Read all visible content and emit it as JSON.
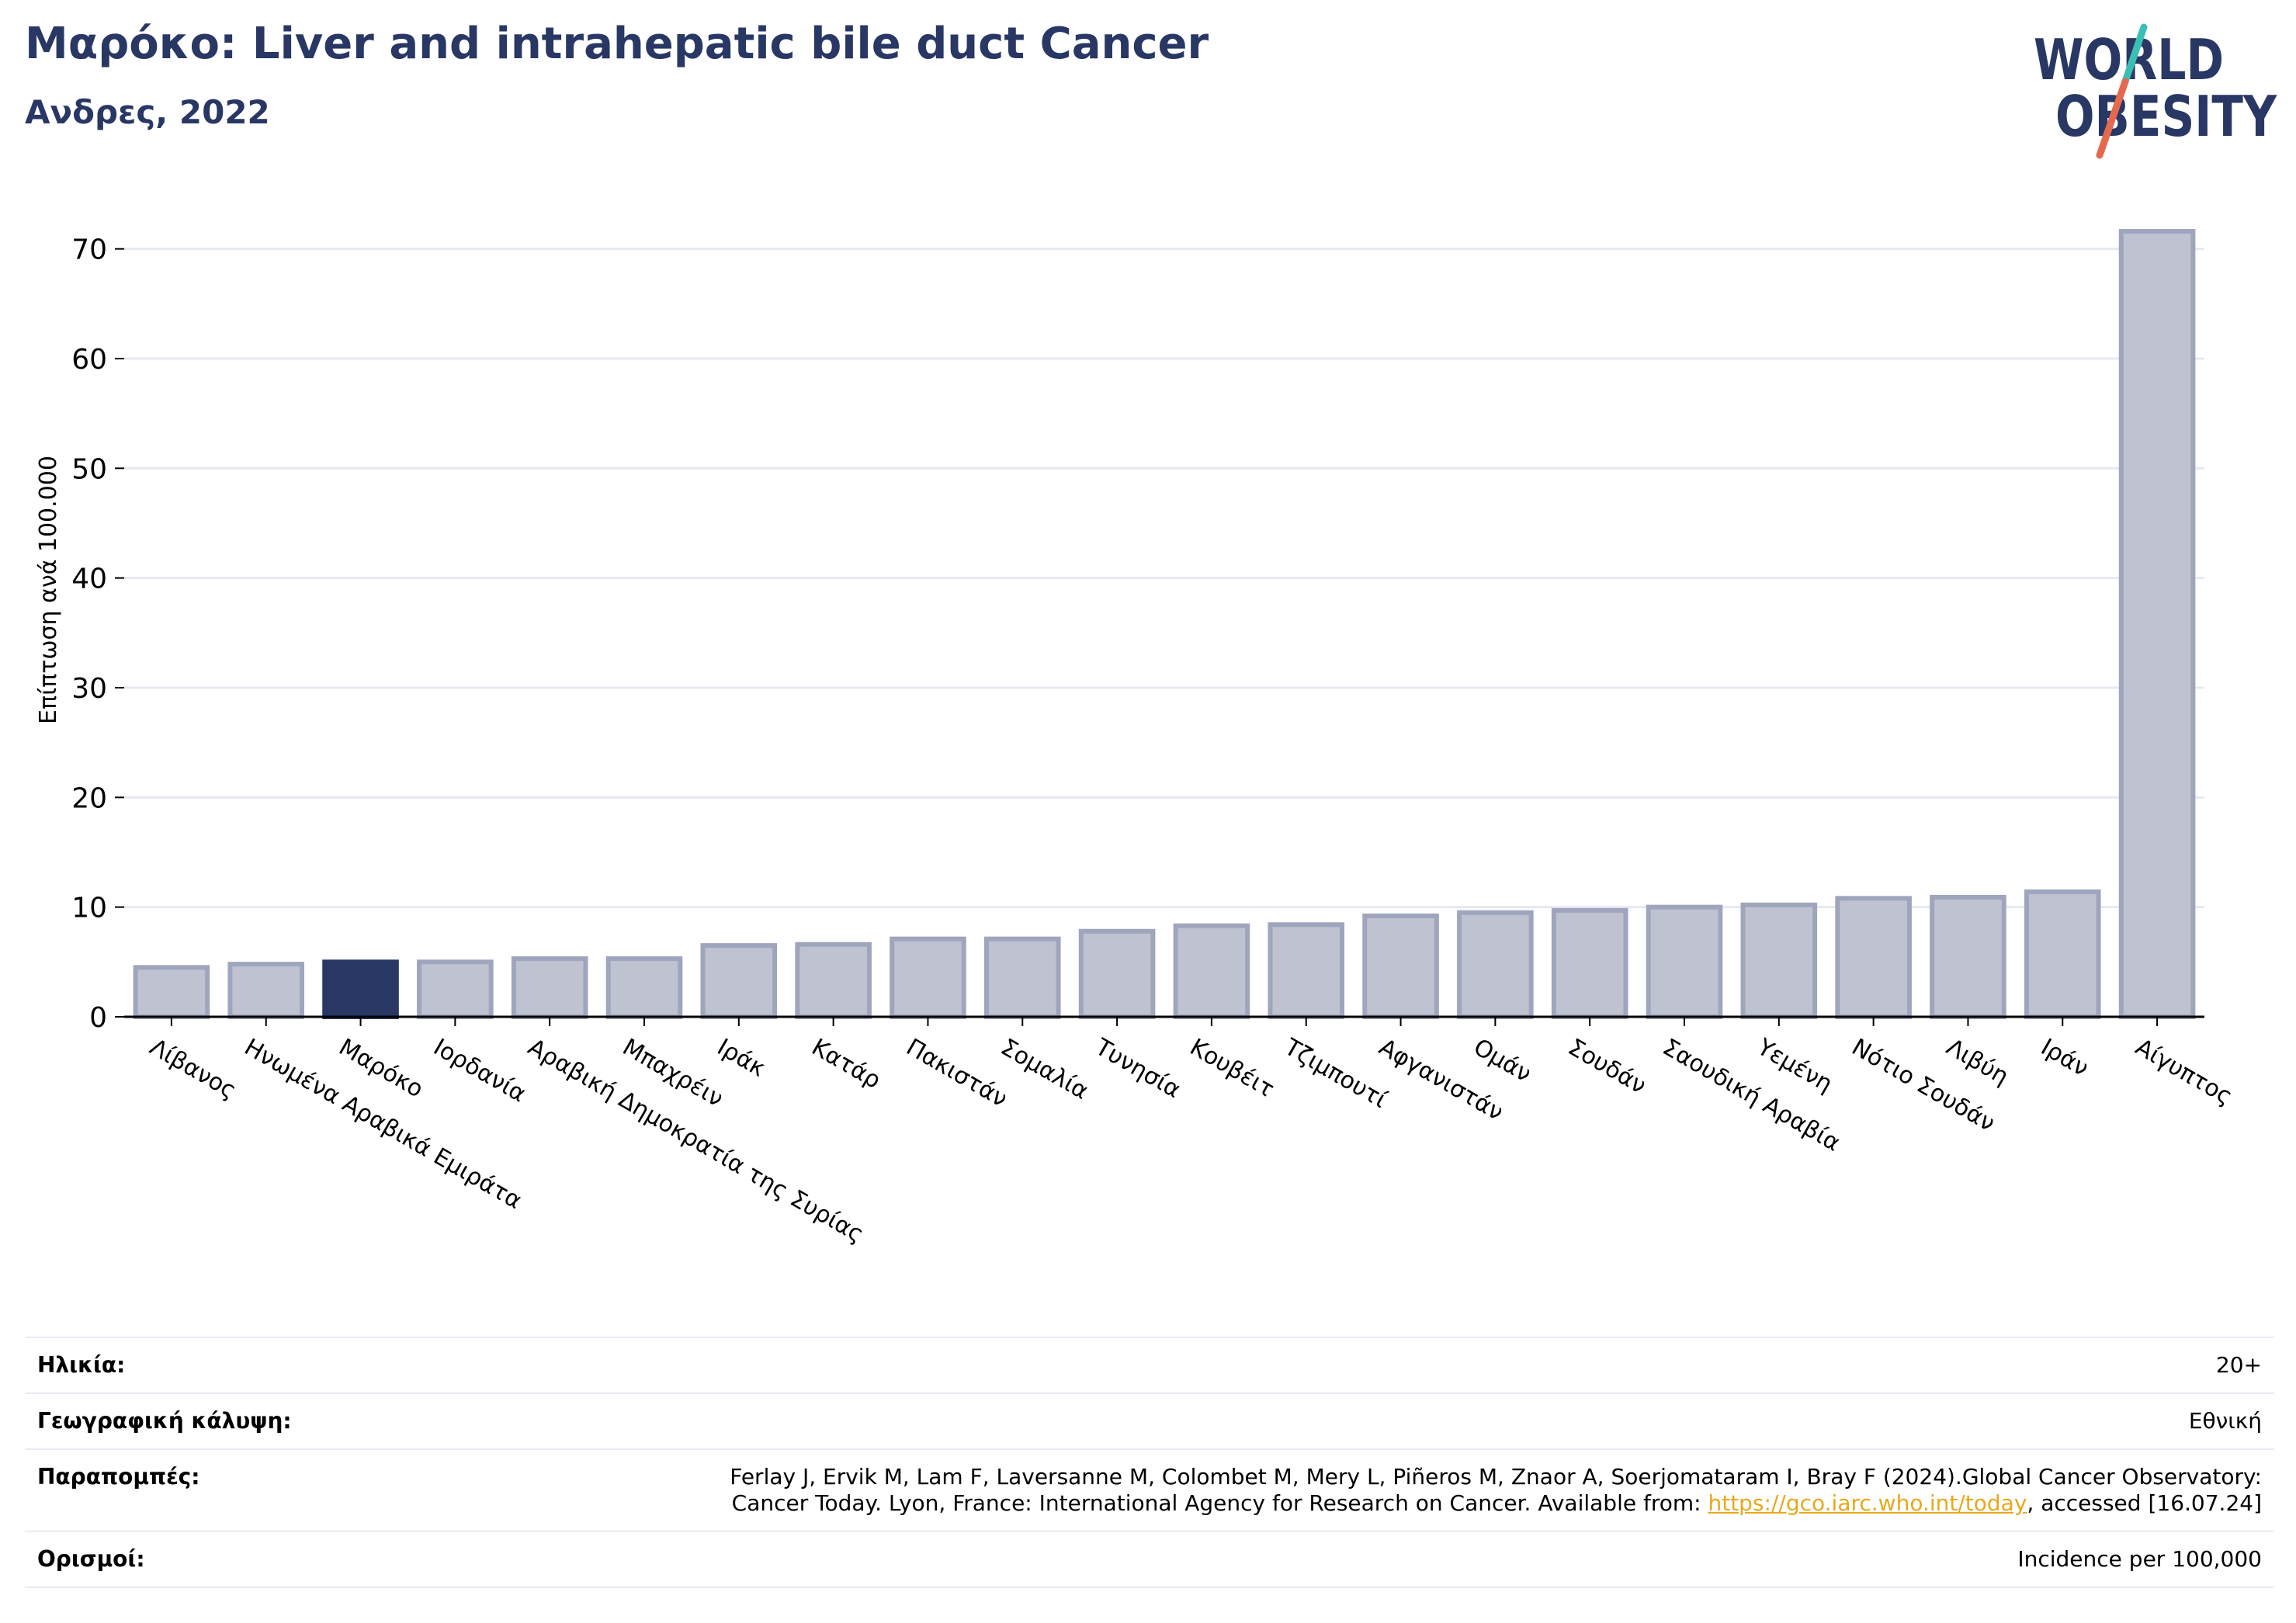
{
  "header": {
    "title": "Μαρόκο: Liver and intrahepatic bile duct Cancer",
    "subtitle": "Ανδρες, 2022"
  },
  "logo": {
    "line1": "WORLD",
    "line2": "OBESITY",
    "colors": {
      "text": "#283764",
      "slash_top": "#3bbfb5",
      "slash_bottom": "#e5694f"
    }
  },
  "chart_data": {
    "type": "bar",
    "ylabel": "Επίπτωση ανά 100.000",
    "ylim": [
      0,
      75
    ],
    "yticks": [
      0,
      10,
      20,
      30,
      40,
      50,
      60,
      70
    ],
    "grid": true,
    "highlight_category": "Μαρόκο",
    "colors": {
      "bar": "#bfc3d1",
      "bar_edge": "#9ea5bd",
      "highlight": "#283764",
      "grid": "#e6e9f0",
      "axis": "#000000"
    },
    "categories": [
      "Λίβανος",
      "Ηνωμένα Αραβικά Εμιράτα",
      "Μαρόκο",
      "Ιορδανία",
      "Αραβική Δημοκρατία της Συρίας",
      "Μπαχρέιν",
      "Ιράκ",
      "Κατάρ",
      "Πακιστάν",
      "Σομαλία",
      "Τυνησία",
      "Κουβέιτ",
      "Τζιμπουτί",
      "Αφγανιστάν",
      "Ομάν",
      "Σουδάν",
      "Σαουδική Αραβία",
      "Υεμένη",
      "Νότιο Σουδάν",
      "Λιβύη",
      "Ιράν",
      "Αίγυπτος"
    ],
    "values": [
      4.5,
      4.8,
      5.0,
      5.0,
      5.3,
      5.3,
      6.5,
      6.6,
      7.1,
      7.1,
      7.8,
      8.3,
      8.4,
      9.2,
      9.5,
      9.7,
      10.0,
      10.2,
      10.8,
      10.9,
      11.4,
      71.6
    ]
  },
  "info": {
    "rows": [
      {
        "label": "Ηλικία:",
        "value": "20+"
      },
      {
        "label": "Γεωγραφική κάλυψη:",
        "value": "Εθνική"
      },
      {
        "label": "Παραπομπές:",
        "value_line1": "Ferlay J, Ervik M, Lam F, Laversanne M, Colombet M, Mery L, Piñeros M, Znaor A, Soerjomataram I, Bray F (2024).Global Cancer Observatory:",
        "value_line2_pre": "Cancer Today. Lyon, France: International Agency for Research on Cancer. Available from: ",
        "link": "https://gco.iarc.who.int/today",
        "value_line2_post": ", accessed [16.07.24]"
      },
      {
        "label": "Ορισμοί:",
        "value": "Incidence per 100,000"
      }
    ]
  }
}
